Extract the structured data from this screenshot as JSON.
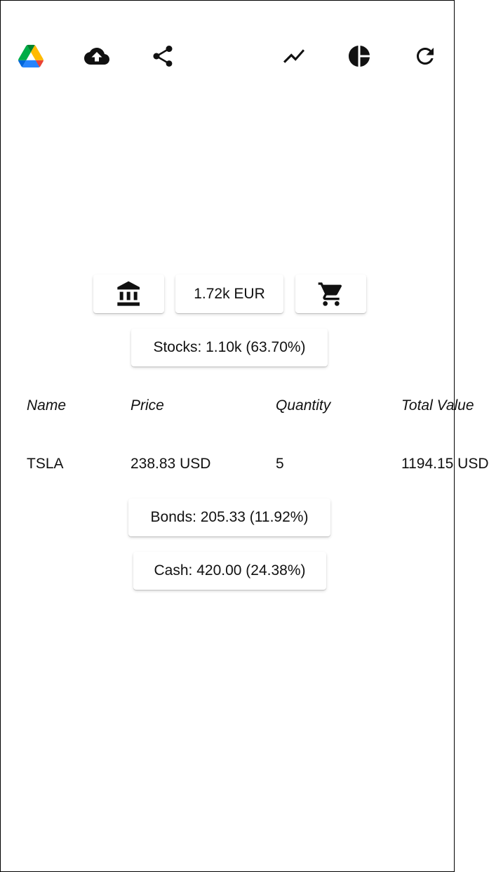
{
  "toolbar": {
    "items": [
      {
        "name": "google-drive-icon"
      },
      {
        "name": "cloud-upload-icon"
      },
      {
        "name": "share-icon"
      },
      {
        "name": "show-chart-icon"
      },
      {
        "name": "pie-chart-icon"
      },
      {
        "name": "refresh-icon"
      }
    ]
  },
  "summary": {
    "bank_icon": "account-balance-icon",
    "total_label": "1.72k EUR",
    "cart_icon": "shopping-cart-icon"
  },
  "stocks": {
    "label": "Stocks: 1.10k (63.70%)",
    "columns": [
      "Name",
      "Price",
      "Quantity",
      "Total Value"
    ],
    "rows": [
      {
        "name": "TSLA",
        "price": "238.83 USD",
        "quantity": "5",
        "total": "1194.15 USD"
      }
    ]
  },
  "bonds": {
    "label": "Bonds: 205.33 (11.92%)"
  },
  "cash": {
    "label": "Cash: 420.00 (24.38%)"
  },
  "colors": {
    "drive_green": "#0F9D58",
    "drive_blue": "#4285F4",
    "drive_yellow": "#FFCD40",
    "icon": "#111111"
  }
}
